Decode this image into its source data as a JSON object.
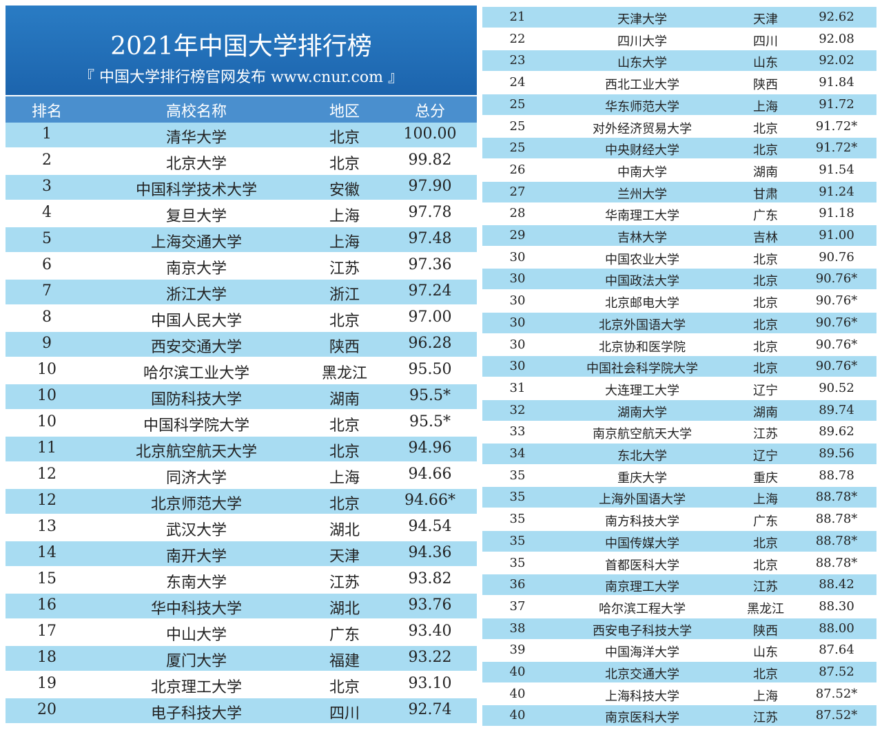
{
  "header": {
    "title": "2021年中国大学排行榜",
    "subtitle": "『 中国大学排行榜官网发布  www.cnur.com 』"
  },
  "left": {
    "columns": [
      "排名",
      "高校名称",
      "地区",
      "总分"
    ],
    "rows": [
      [
        "1",
        "清华大学",
        "北京",
        "100.00"
      ],
      [
        "2",
        "北京大学",
        "北京",
        "99.82"
      ],
      [
        "3",
        "中国科学技术大学",
        "安徽",
        "97.90"
      ],
      [
        "4",
        "复旦大学",
        "上海",
        "97.78"
      ],
      [
        "5",
        "上海交通大学",
        "上海",
        "97.48"
      ],
      [
        "6",
        "南京大学",
        "江苏",
        "97.36"
      ],
      [
        "7",
        "浙江大学",
        "浙江",
        "97.24"
      ],
      [
        "8",
        "中国人民大学",
        "北京",
        "97.00"
      ],
      [
        "9",
        "西安交通大学",
        "陕西",
        "96.28"
      ],
      [
        "10",
        "哈尔滨工业大学",
        "黑龙江",
        "95.50"
      ],
      [
        "10",
        "国防科技大学",
        "湖南",
        "95.5*"
      ],
      [
        "10",
        "中国科学院大学",
        "北京",
        "95.5*"
      ],
      [
        "11",
        "北京航空航天大学",
        "北京",
        "94.96"
      ],
      [
        "12",
        "同济大学",
        "上海",
        "94.66"
      ],
      [
        "12",
        "北京师范大学",
        "北京",
        "94.66*"
      ],
      [
        "13",
        "武汉大学",
        "湖北",
        "94.54"
      ],
      [
        "14",
        "南开大学",
        "天津",
        "94.36"
      ],
      [
        "15",
        "东南大学",
        "江苏",
        "93.82"
      ],
      [
        "16",
        "华中科技大学",
        "湖北",
        "93.76"
      ],
      [
        "17",
        "中山大学",
        "广东",
        "93.40"
      ],
      [
        "18",
        "厦门大学",
        "福建",
        "93.22"
      ],
      [
        "19",
        "北京理工大学",
        "北京",
        "93.10"
      ],
      [
        "20",
        "电子科技大学",
        "四川",
        "92.74"
      ]
    ]
  },
  "right": {
    "rows": [
      [
        "21",
        "天津大学",
        "天津",
        "92.62"
      ],
      [
        "22",
        "四川大学",
        "四川",
        "92.08"
      ],
      [
        "23",
        "山东大学",
        "山东",
        "92.02"
      ],
      [
        "24",
        "西北工业大学",
        "陕西",
        "91.84"
      ],
      [
        "25",
        "华东师范大学",
        "上海",
        "91.72"
      ],
      [
        "25",
        "对外经济贸易大学",
        "北京",
        "91.72*"
      ],
      [
        "25",
        "中央财经大学",
        "北京",
        "91.72*"
      ],
      [
        "26",
        "中南大学",
        "湖南",
        "91.54"
      ],
      [
        "27",
        "兰州大学",
        "甘肃",
        "91.24"
      ],
      [
        "28",
        "华南理工大学",
        "广东",
        "91.18"
      ],
      [
        "29",
        "吉林大学",
        "吉林",
        "91.00"
      ],
      [
        "30",
        "中国农业大学",
        "北京",
        "90.76"
      ],
      [
        "30",
        "中国政法大学",
        "北京",
        "90.76*"
      ],
      [
        "30",
        "北京邮电大学",
        "北京",
        "90.76*"
      ],
      [
        "30",
        "北京外国语大学",
        "北京",
        "90.76*"
      ],
      [
        "30",
        "北京协和医学院",
        "北京",
        "90.76*"
      ],
      [
        "30",
        "中国社会科学院大学",
        "北京",
        "90.76*"
      ],
      [
        "31",
        "大连理工大学",
        "辽宁",
        "90.52"
      ],
      [
        "32",
        "湖南大学",
        "湖南",
        "89.74"
      ],
      [
        "33",
        "南京航空航天大学",
        "江苏",
        "89.62"
      ],
      [
        "34",
        "东北大学",
        "辽宁",
        "89.56"
      ],
      [
        "35",
        "重庆大学",
        "重庆",
        "88.78"
      ],
      [
        "35",
        "上海外国语大学",
        "上海",
        "88.78*"
      ],
      [
        "35",
        "南方科技大学",
        "广东",
        "88.78*"
      ],
      [
        "35",
        "中国传媒大学",
        "北京",
        "88.78*"
      ],
      [
        "35",
        "首都医科大学",
        "北京",
        "88.78*"
      ],
      [
        "36",
        "南京理工大学",
        "江苏",
        "88.42"
      ],
      [
        "37",
        "哈尔滨工程大学",
        "黑龙江",
        "88.30"
      ],
      [
        "38",
        "西安电子科技大学",
        "陕西",
        "88.00"
      ],
      [
        "39",
        "中国海洋大学",
        "山东",
        "87.64"
      ],
      [
        "40",
        "北京交通大学",
        "北京",
        "87.52"
      ],
      [
        "40",
        "上海科技大学",
        "上海",
        "87.52*"
      ],
      [
        "40",
        "南京医科大学",
        "江苏",
        "87.52*"
      ]
    ]
  }
}
